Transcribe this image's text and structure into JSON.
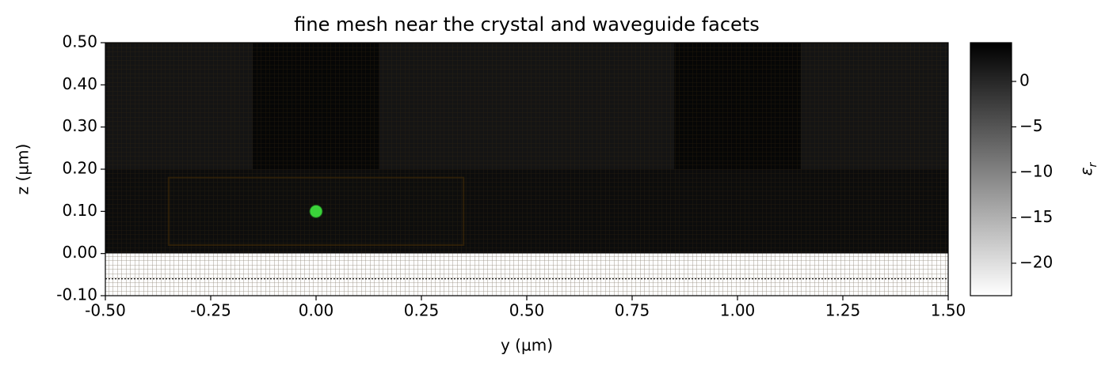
{
  "chart_data": {
    "type": "heatmap",
    "title": "fine mesh near the crystal and waveguide facets",
    "x_label": "y (µm)",
    "y_label": "z (µm)",
    "xlim": [
      -0.5,
      1.5
    ],
    "ylim": [
      -0.1,
      0.5
    ],
    "xticks": [
      {
        "value": -0.5,
        "label": "-0.50"
      },
      {
        "value": -0.25,
        "label": "-0.25"
      },
      {
        "value": 0,
        "label": "0.00"
      },
      {
        "value": 0.25,
        "label": "0.25"
      },
      {
        "value": 0.5,
        "label": "0.50"
      },
      {
        "value": 0.75,
        "label": "0.75"
      },
      {
        "value": 1,
        "label": "1.00"
      },
      {
        "value": 1.25,
        "label": "1.25"
      },
      {
        "value": 1.5,
        "label": "1.50"
      }
    ],
    "yticks": [
      {
        "value": -0.1,
        "label": "-0.10"
      },
      {
        "value": 0,
        "label": "0.00"
      },
      {
        "value": 0.1,
        "label": "0.10"
      },
      {
        "value": 0.2,
        "label": "0.20"
      },
      {
        "value": 0.3,
        "label": "0.30"
      },
      {
        "value": 0.4,
        "label": "0.40"
      },
      {
        "value": 0.5,
        "label": "0.50"
      }
    ],
    "cmap": "gray_r",
    "clim": [
      -23.57,
      4.26
    ],
    "colorbar_ticks": [
      {
        "value": 0,
        "label": "0"
      },
      {
        "value": -5,
        "label": "−5"
      },
      {
        "value": -10,
        "label": "−10"
      },
      {
        "value": -15,
        "label": "−15"
      },
      {
        "value": -20,
        "label": "−20"
      }
    ],
    "colorbar_label": {
      "symbol": "ε",
      "subscript": "r"
    },
    "regions": [
      {
        "y": [
          -0.5,
          1.5
        ],
        "z": [
          0.2,
          0.5
        ],
        "value": 2.1
      },
      {
        "y": [
          -0.15,
          0.15
        ],
        "z": [
          0.2,
          0.5
        ],
        "value": 3.6
      },
      {
        "y": [
          0.85,
          1.15
        ],
        "z": [
          0.2,
          0.5
        ],
        "value": 3.6
      },
      {
        "y": [
          -0.5,
          1.5
        ],
        "z": [
          0,
          0.2
        ],
        "value": 2.9
      },
      {
        "y": [
          -0.35,
          0.35
        ],
        "z": [
          0.02,
          0.18
        ],
        "value": 2.8
      },
      {
        "y": [
          -0.5,
          1.5
        ],
        "z": [
          -0.1,
          0
        ],
        "value": -23.3
      }
    ],
    "source": {
      "y": 0,
      "z": 0.1,
      "color": "#3ad23a"
    },
    "monitor_z": -0.06
  }
}
